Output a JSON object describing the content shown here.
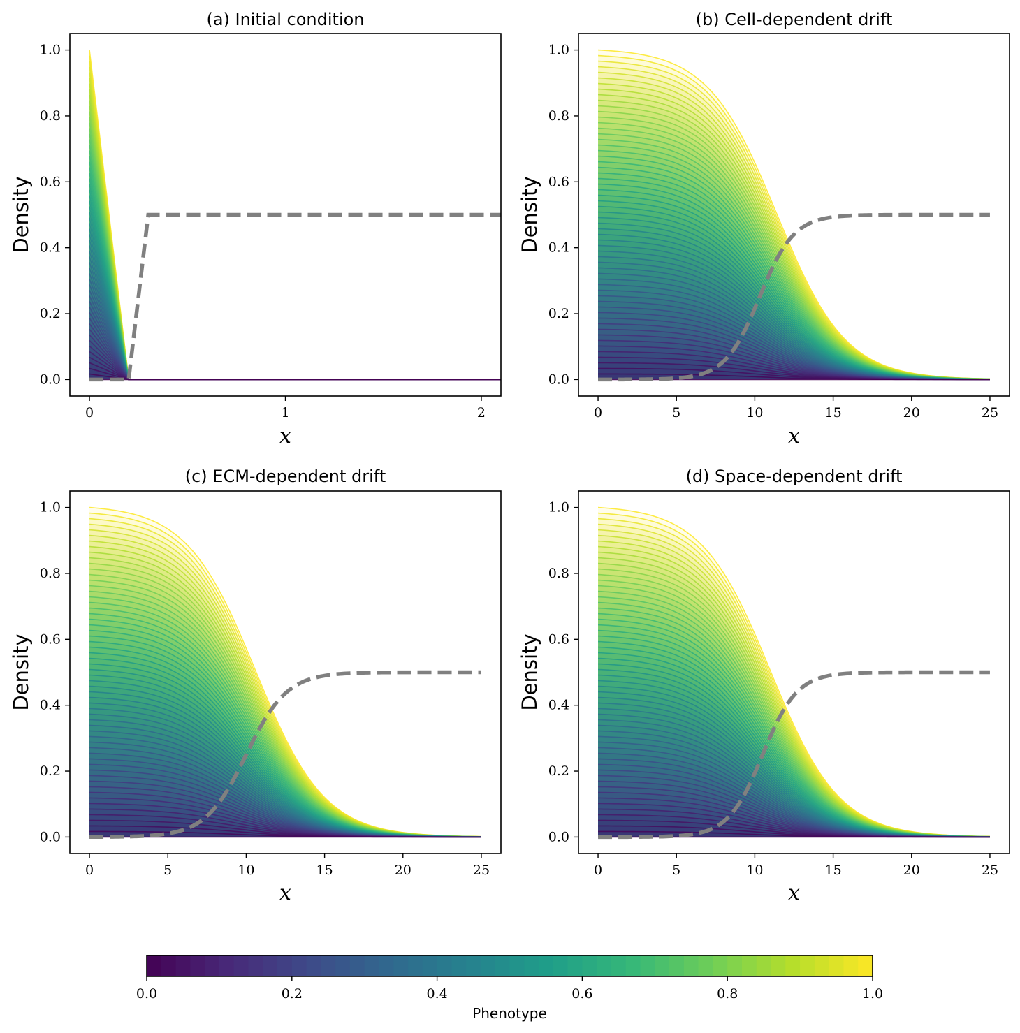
{
  "chart_data": [
    {
      "type": "line",
      "title": "(a) Initial condition",
      "xlabel": "x",
      "ylabel": "Density",
      "xlim": [
        -0.1,
        2.1
      ],
      "ylim": [
        -0.05,
        1.05
      ],
      "xticks": [
        0,
        1,
        2
      ],
      "yticks": [
        0.0,
        0.2,
        0.4,
        0.6,
        0.8,
        1.0
      ],
      "xtick_labels": [
        "0",
        "1",
        "2"
      ],
      "ytick_labels": [
        "0.0",
        "0.2",
        "0.4",
        "0.6",
        "0.8",
        "1.0"
      ],
      "density_profile": {
        "kind": "triangle",
        "x_end": 0.2,
        "x_max": 2.1,
        "phenotype_count": 60,
        "peak_range": [
          0.0,
          1.0
        ]
      },
      "ecm_profile": {
        "kind": "ramp",
        "x_start": 0.2,
        "x_end": 0.3,
        "level": 0.5,
        "x_max": 2.1
      }
    },
    {
      "type": "line",
      "title": "(b) Cell-dependent drift",
      "xlabel": "x",
      "ylabel": "Density",
      "xlim": [
        -1.25,
        26.25
      ],
      "ylim": [
        -0.05,
        1.05
      ],
      "xticks": [
        0,
        5,
        10,
        15,
        20,
        25
      ],
      "yticks": [
        0.0,
        0.2,
        0.4,
        0.6,
        0.8,
        1.0
      ],
      "xtick_labels": [
        "0",
        "5",
        "10",
        "15",
        "20",
        "25"
      ],
      "ytick_labels": [
        "0.0",
        "0.2",
        "0.4",
        "0.6",
        "0.8",
        "1.0"
      ],
      "density_profile": {
        "kind": "front",
        "center": 10.0,
        "width": 2.2,
        "x_max": 25,
        "phenotype_count": 60,
        "peak_range": [
          0.0,
          1.0
        ]
      },
      "ecm_profile": {
        "kind": "sigmoid",
        "center": 10.3,
        "width": 1.1,
        "level": 0.5,
        "x_max": 25
      }
    },
    {
      "type": "line",
      "title": "(c) ECM-dependent drift",
      "xlabel": "x",
      "ylabel": "Density",
      "xlim": [
        -1.25,
        26.25
      ],
      "ylim": [
        -0.05,
        1.05
      ],
      "xticks": [
        0,
        5,
        10,
        15,
        20,
        25
      ],
      "yticks": [
        0.0,
        0.2,
        0.4,
        0.6,
        0.8,
        1.0
      ],
      "xtick_labels": [
        "0",
        "5",
        "10",
        "15",
        "20",
        "25"
      ],
      "ytick_labels": [
        "0.0",
        "0.2",
        "0.4",
        "0.6",
        "0.8",
        "1.0"
      ],
      "density_profile": {
        "kind": "front",
        "center": 9.2,
        "width": 2.2,
        "x_max": 25,
        "phenotype_count": 60,
        "peak_range": [
          0.0,
          1.0
        ]
      },
      "ecm_profile": {
        "kind": "sigmoid",
        "center": 10.0,
        "width": 1.3,
        "level": 0.5,
        "x_max": 25
      }
    },
    {
      "type": "line",
      "title": "(d) Space-dependent drift",
      "xlabel": "x",
      "ylabel": "Density",
      "xlim": [
        -1.25,
        26.25
      ],
      "ylim": [
        -0.05,
        1.05
      ],
      "xticks": [
        0,
        5,
        10,
        15,
        20,
        25
      ],
      "yticks": [
        0.0,
        0.2,
        0.4,
        0.6,
        0.8,
        1.0
      ],
      "xtick_labels": [
        "0",
        "5",
        "10",
        "15",
        "20",
        "25"
      ],
      "ytick_labels": [
        "0.0",
        "0.2",
        "0.4",
        "0.6",
        "0.8",
        "1.0"
      ],
      "density_profile": {
        "kind": "front",
        "center": 9.6,
        "width": 2.2,
        "x_max": 25,
        "phenotype_count": 60,
        "peak_range": [
          0.0,
          1.0
        ]
      },
      "ecm_profile": {
        "kind": "sigmoid",
        "center": 10.5,
        "width": 1.1,
        "level": 0.5,
        "x_max": 25
      }
    }
  ],
  "colorbar": {
    "label": "Phenotype",
    "range": [
      0.0,
      1.0
    ],
    "ticks": [
      0.0,
      0.2,
      0.4,
      0.6,
      0.8,
      1.0
    ],
    "tick_labels": [
      "0.0",
      "0.2",
      "0.4",
      "0.6",
      "0.8",
      "1.0"
    ],
    "colormap": "viridis",
    "segments": 50
  },
  "colors": {
    "ecm_line": "#808080",
    "axes": "#000000",
    "viridis": [
      "#440154",
      "#482878",
      "#3e4a89",
      "#31688e",
      "#26828e",
      "#1f9e89",
      "#35b779",
      "#6ece58",
      "#b5de2b",
      "#fde725"
    ]
  }
}
